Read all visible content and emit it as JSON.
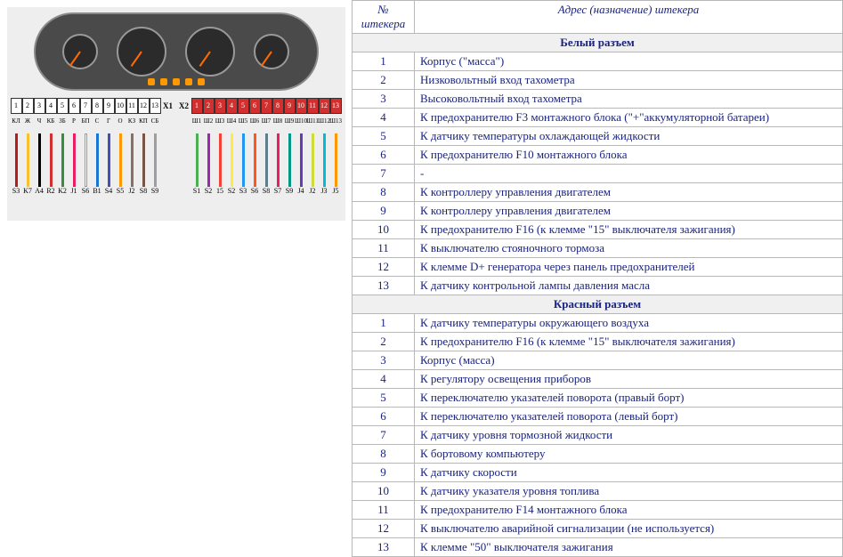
{
  "table": {
    "header_pin": "№ штекера",
    "header_desc": "Адрес (назначение) штекера",
    "sections": [
      {
        "title": "Белый разъем",
        "rows": [
          {
            "n": "1",
            "d": "Корпус (\"масса\")"
          },
          {
            "n": "2",
            "d": "Низковольтный вход тахометра"
          },
          {
            "n": "3",
            "d": "Высоковольтный вход тахометра"
          },
          {
            "n": "4",
            "d": "К предохранителю F3 монтажного блока (\"+\"аккумуляторной батареи)"
          },
          {
            "n": "5",
            "d": "К датчику температуры охлаждающей жидкости"
          },
          {
            "n": "6",
            "d": "К предохранителю F10 монтажного блока"
          },
          {
            "n": "7",
            "d": "-"
          },
          {
            "n": "8",
            "d": "К контроллеру управления двигателем"
          },
          {
            "n": "9",
            "d": "К контроллеру управления двигателем"
          },
          {
            "n": "10",
            "d": "К предохранителю F16 (к клемме \"15\" выключателя зажигания)"
          },
          {
            "n": "11",
            "d": "К выключателю стояночного тормоза"
          },
          {
            "n": "12",
            "d": "К клемме D+ генератора через панель предохранителей"
          },
          {
            "n": "13",
            "d": "К датчику контрольной лампы давления масла"
          }
        ]
      },
      {
        "title": "Красный разъем",
        "rows": [
          {
            "n": "1",
            "d": "К датчику температуры окружающего воздуха"
          },
          {
            "n": "2",
            "d": "К предохранителю F16 (к клемме \"15\" выключателя зажигания)"
          },
          {
            "n": "3",
            "d": "Корпус (масса)"
          },
          {
            "n": "4",
            "d": "К регулятору освещения приборов"
          },
          {
            "n": "5",
            "d": "К переключателю указателей поворота (правый борт)"
          },
          {
            "n": "6",
            "d": "К переключателю указателей поворота (левый борт)"
          },
          {
            "n": "7",
            "d": "К датчику уровня тормозной жидкости"
          },
          {
            "n": "8",
            "d": "К бортовому компьютеру"
          },
          {
            "n": "9",
            "d": "К датчику скорости"
          },
          {
            "n": "10",
            "d": "К датчику указателя уровня топлива"
          },
          {
            "n": "11",
            "d": "К предохранителю F14 монтажного блока"
          },
          {
            "n": "12",
            "d": "К выключателю аварийной сигнализации (не используется)"
          },
          {
            "n": "13",
            "d": "К клемме \"50\" выключателя зажигания"
          }
        ]
      }
    ]
  },
  "diagram": {
    "conn_x1_label": "X1",
    "conn_x2_label": "X2",
    "pins_white": [
      "1",
      "2",
      "3",
      "4",
      "5",
      "6",
      "7",
      "8",
      "9",
      "10",
      "11",
      "12",
      "13"
    ],
    "pins_red": [
      "1",
      "2",
      "3",
      "4",
      "5",
      "6",
      "7",
      "8",
      "9",
      "10",
      "11",
      "12",
      "13"
    ],
    "wires_white": [
      {
        "lbl": "КЛ",
        "c": "#b71c1c",
        "n": "S3"
      },
      {
        "lbl": "Ж",
        "c": "#fbc02d",
        "n": "K7"
      },
      {
        "lbl": "Ч",
        "c": "#000000",
        "n": "A4"
      },
      {
        "lbl": "КБ",
        "c": "#d32f2f",
        "n": "R2"
      },
      {
        "lbl": "ЗБ",
        "c": "#388e3c",
        "n": "K2"
      },
      {
        "lbl": "Р",
        "c": "#e91e63",
        "n": "J1"
      },
      {
        "lbl": "БП",
        "c": "#ffffff",
        "n": "S6",
        "border": "#999"
      },
      {
        "lbl": "С",
        "c": "#1976d2",
        "n": "B1"
      },
      {
        "lbl": "Г",
        "c": "#3f51b5",
        "n": "S4"
      },
      {
        "lbl": "О",
        "c": "#ff9800",
        "n": "S5"
      },
      {
        "lbl": "КЗ",
        "c": "#8d6e63",
        "n": "J2"
      },
      {
        "lbl": "КП",
        "c": "#795548",
        "n": "S8"
      },
      {
        "lbl": "СБ",
        "c": "#9e9e9e",
        "n": "S9"
      }
    ],
    "wires_red": [
      {
        "lbl": "Ш1",
        "c": "#4caf50",
        "n": "S1"
      },
      {
        "lbl": "Ш2",
        "c": "#9c27b0",
        "n": "S2"
      },
      {
        "lbl": "Ш3",
        "c": "#f44336",
        "n": "15"
      },
      {
        "lbl": "Ш4",
        "c": "#ffeb3b",
        "n": "S2"
      },
      {
        "lbl": "Ш5",
        "c": "#2196f3",
        "n": "S3"
      },
      {
        "lbl": "Ш6",
        "c": "#ff5722",
        "n": "S6"
      },
      {
        "lbl": "Ш7",
        "c": "#607d8b",
        "n": "S8"
      },
      {
        "lbl": "Ш8",
        "c": "#e91e63",
        "n": "S7"
      },
      {
        "lbl": "Ш9",
        "c": "#009688",
        "n": "S9"
      },
      {
        "lbl": "Ш10",
        "c": "#673ab7",
        "n": "J4"
      },
      {
        "lbl": "Ш11",
        "c": "#cddc39",
        "n": "J2"
      },
      {
        "lbl": "Ш12",
        "c": "#00bcd4",
        "n": "J3"
      },
      {
        "lbl": "Ш13",
        "c": "#ff9800",
        "n": "J5"
      }
    ]
  },
  "colors": {
    "border": "#b8b8b8",
    "text_link": "#1a237e"
  }
}
